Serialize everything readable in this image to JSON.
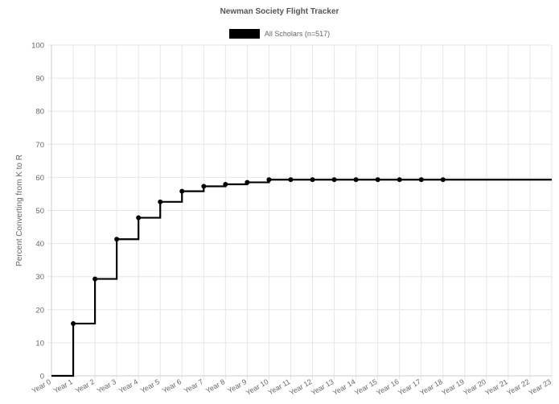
{
  "chart_data": {
    "type": "line",
    "stepped": true,
    "title": "Newman Society Flight Tracker",
    "ylabel": "Percent Converting from K to R",
    "xlabel": "",
    "ylim": [
      0,
      100
    ],
    "yticks": [
      0,
      10,
      20,
      30,
      40,
      50,
      60,
      70,
      80,
      90,
      100
    ],
    "grid": true,
    "legend_position": "top",
    "categories": [
      "Year 0",
      "Year 1",
      "Year 2",
      "Year 3",
      "Year 4",
      "Year 5",
      "Year 6",
      "Year 7",
      "Year 8",
      "Year 9",
      "Year 10",
      "Year 11",
      "Year 12",
      "Year 13",
      "Year 14",
      "Year 15",
      "Year 16",
      "Year 17",
      "Year 18",
      "Year 19",
      "Year 20",
      "Year 21",
      "Year 22",
      "Year 23"
    ],
    "series": [
      {
        "name": "All Scholars (n=517)",
        "color": "#000000",
        "values": [
          0,
          15.8,
          29.3,
          41.3,
          47.8,
          52.6,
          55.8,
          57.3,
          57.9,
          58.5,
          59.3,
          59.3,
          59.3,
          59.3,
          59.3,
          59.3,
          59.3,
          59.3,
          59.3,
          59.3,
          59.3,
          59.3,
          59.3,
          59.3
        ],
        "markers": [
          false,
          true,
          true,
          true,
          true,
          true,
          true,
          true,
          true,
          true,
          true,
          true,
          true,
          true,
          true,
          true,
          true,
          true,
          true,
          false,
          false,
          false,
          false,
          false
        ]
      }
    ]
  }
}
